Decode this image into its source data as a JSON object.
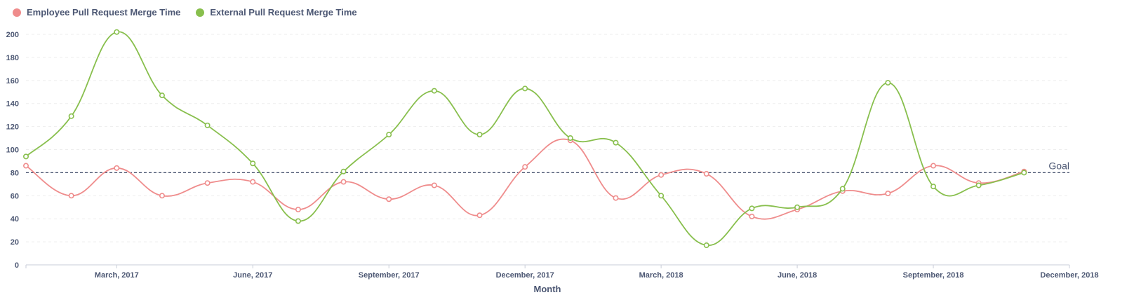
{
  "chart_data": {
    "type": "line",
    "title": "",
    "xlabel": "Month",
    "ylabel": "",
    "ylim": [
      0,
      200
    ],
    "y_ticks": [
      0,
      20,
      40,
      60,
      80,
      100,
      120,
      140,
      160,
      180,
      200
    ],
    "x_range": [
      "2017-01",
      "2018-12"
    ],
    "x": [
      "2017-01",
      "2017-02",
      "2017-03",
      "2017-04",
      "2017-05",
      "2017-06",
      "2017-07",
      "2017-08",
      "2017-09",
      "2017-10",
      "2017-11",
      "2017-12",
      "2018-01",
      "2018-02",
      "2018-03",
      "2018-04",
      "2018-05",
      "2018-06",
      "2018-07",
      "2018-08",
      "2018-09",
      "2018-10",
      "2018-11"
    ],
    "x_tick_labels": [
      {
        "month": "2017-03",
        "label": "March, 2017"
      },
      {
        "month": "2017-06",
        "label": "June, 2017"
      },
      {
        "month": "2017-09",
        "label": "September, 2017"
      },
      {
        "month": "2017-12",
        "label": "December, 2017"
      },
      {
        "month": "2018-03",
        "label": "March, 2018"
      },
      {
        "month": "2018-06",
        "label": "June, 2018"
      },
      {
        "month": "2018-09",
        "label": "September, 2018"
      },
      {
        "month": "2018-12",
        "label": "December, 2018"
      }
    ],
    "series": [
      {
        "name": "Employee Pull Request Merge Time",
        "color": "#ef8c8c",
        "values": [
          86,
          60,
          84,
          60,
          71,
          72,
          48,
          72,
          57,
          69,
          43,
          85,
          108,
          58,
          78,
          79,
          42,
          48,
          64,
          62,
          86,
          71,
          81
        ]
      },
      {
        "name": "External Pull Request Merge Time",
        "color": "#88bf4d",
        "values": [
          94,
          129,
          202,
          147,
          121,
          88,
          38,
          81,
          113,
          151,
          113,
          153,
          110,
          106,
          60,
          17,
          49,
          50,
          66,
          158,
          68,
          69,
          80
        ]
      }
    ],
    "goal": {
      "label": "Goal",
      "value": 80
    },
    "grid": true,
    "legend": "top-left"
  }
}
